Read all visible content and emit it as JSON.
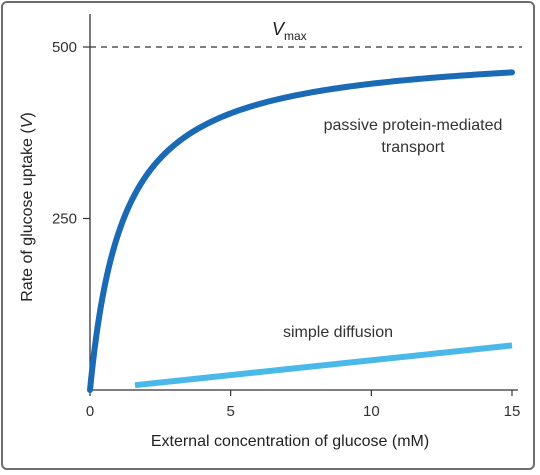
{
  "chart_data": {
    "type": "line",
    "xlabel": "External concentration of glucose (mM)",
    "ylabel_main": "Rate of glucose uptake (",
    "ylabel_var": "V",
    "ylabel_close": ")",
    "xlim": [
      0,
      15
    ],
    "ylim": [
      0,
      500
    ],
    "x_ticks": [
      0,
      5,
      10,
      15
    ],
    "x_tick_labels": [
      "0",
      "5",
      "10",
      "15"
    ],
    "y_ticks": [
      250,
      500
    ],
    "y_tick_labels": [
      "250",
      "500"
    ],
    "vmax": {
      "value": 500,
      "label_main": "V",
      "label_sub": "max"
    },
    "series": [
      {
        "name": "passive protein-mediated transport",
        "label_line1": "passive protein-mediated",
        "label_line2": "transport",
        "color": "#1a6ab5",
        "model": "hyperbolic",
        "Km": 1.2,
        "Vmax_curve": 500,
        "x_range": [
          0,
          15
        ]
      },
      {
        "name": "simple diffusion",
        "label_line1": "simple diffusion",
        "color": "#4ab8e8",
        "x": [
          1.6,
          15
        ],
        "y": [
          7,
          65
        ]
      }
    ],
    "grid": false
  }
}
